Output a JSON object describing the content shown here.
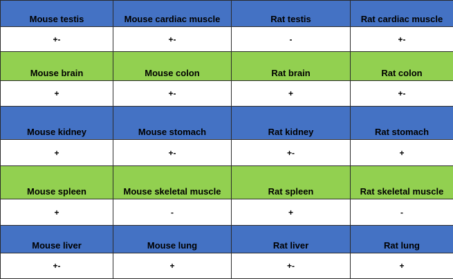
{
  "rows": [
    {
      "headers": [
        "Mouse testis",
        "Mouse cardiac muscle",
        "Rat testis",
        "Rat cardiac muscle"
      ],
      "values": [
        "+-",
        "+-",
        "-",
        "+-"
      ]
    },
    {
      "headers": [
        "Mouse brain",
        "Mouse colon",
        "Rat brain",
        "Rat colon"
      ],
      "values": [
        "+",
        "+-",
        "+",
        "+-"
      ]
    },
    {
      "headers": [
        "Mouse kidney",
        "Mouse stomach",
        "Rat kidney",
        "Rat stomach"
      ],
      "values": [
        "+",
        "+-",
        "+-",
        "+"
      ]
    },
    {
      "headers": [
        "Mouse spleen",
        "Mouse skeletal muscle",
        "Rat spleen",
        "Rat skeletal muscle"
      ],
      "values": [
        "+",
        "-",
        "+",
        "-"
      ]
    },
    {
      "headers": [
        "Mouse liver",
        "Mouse lung",
        "Rat liver",
        "Rat lung"
      ],
      "values": [
        "+-",
        "+",
        "+-",
        "+"
      ]
    }
  ],
  "colors": {
    "blue_header": "#4472c4",
    "green_header": "#92d050",
    "value_row": "#ffffff"
  }
}
